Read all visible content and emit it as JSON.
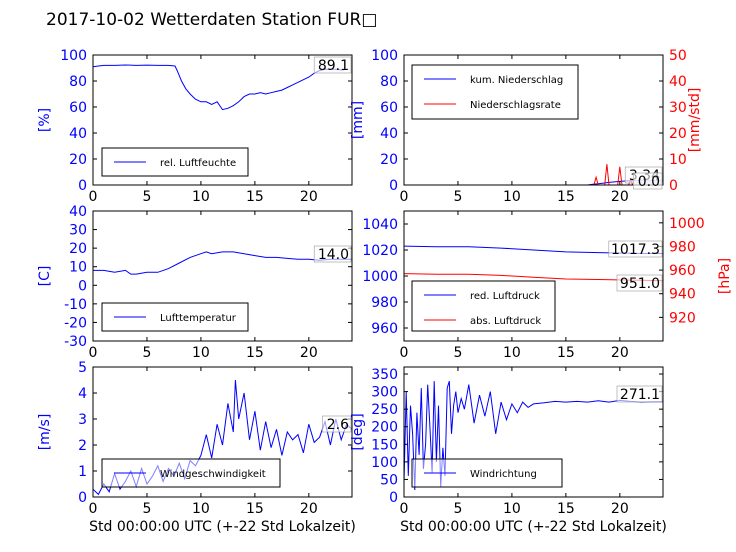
{
  "title": "2017-10-02 Wetterdaten Station FUR",
  "title_glyph": "□",
  "colors": {
    "primary": "#0000ff",
    "secondary": "#ff0000",
    "axis": "#000000"
  },
  "xlabel": "Std 00:00:00 UTC (+-22 Std Lokalzeit)",
  "chart_data": [
    {
      "id": "humidity",
      "type": "line",
      "ylabel": "[%]",
      "xlim": [
        0,
        24
      ],
      "ylim": [
        0,
        100
      ],
      "xticks": [
        0,
        5,
        10,
        15,
        20
      ],
      "yticks": [
        0,
        20,
        40,
        60,
        80,
        100
      ],
      "legend": [
        "rel. Luftfeuchte"
      ],
      "legend_position": "lower-left",
      "annotation": "89.1",
      "series": [
        {
          "name": "rel. Luftfeuchte",
          "color": "primary",
          "x": [
            0,
            0.5,
            1,
            2,
            3,
            4,
            5,
            6,
            7,
            7.6,
            7.8,
            8.2,
            8.6,
            9,
            9.5,
            10,
            10.5,
            11,
            11.5,
            12,
            12.5,
            13,
            13.5,
            14,
            14.5,
            15,
            15.5,
            16,
            16.5,
            17,
            17.5,
            18,
            18.5,
            19,
            19.5,
            20,
            20.5,
            21,
            21.5,
            22,
            22.5,
            23,
            23.6
          ],
          "y": [
            91,
            91.5,
            92,
            92,
            92.3,
            92,
            92.2,
            92,
            92,
            91.5,
            88,
            80,
            74,
            70,
            66,
            64,
            64,
            62,
            64,
            58,
            59,
            61,
            64,
            68,
            70,
            70,
            71,
            70,
            71,
            72,
            73,
            75,
            77,
            79,
            81,
            83,
            86,
            88,
            89,
            89,
            89,
            88.5,
            89.1
          ]
        }
      ]
    },
    {
      "id": "precipitation",
      "type": "line",
      "ylabel": "[mm]",
      "ylabel_right": "[mm/std]",
      "xlim": [
        0,
        24
      ],
      "ylim": [
        0,
        100
      ],
      "ylim_right": [
        0,
        50
      ],
      "xticks": [
        0,
        5,
        10,
        15,
        20
      ],
      "yticks": [
        0,
        20,
        40,
        60,
        80,
        100
      ],
      "yticks_right": [
        0,
        10,
        20,
        30,
        40,
        50
      ],
      "legend": [
        "kum. Niederschlag",
        "Niederschlagsrate"
      ],
      "legend_position": "upper-left",
      "annotations": [
        "3.34",
        "0.0"
      ],
      "series": [
        {
          "name": "kum. Niederschlag",
          "color": "primary",
          "axis": "left",
          "x": [
            0,
            17,
            17.5,
            18,
            18.5,
            19,
            19.5,
            20,
            20.5,
            21,
            22,
            24
          ],
          "y": [
            0,
            0,
            0.5,
            1,
            1.5,
            2,
            2.4,
            2.8,
            3.1,
            3.3,
            3.34,
            3.34
          ]
        },
        {
          "name": "Niederschlagsrate",
          "color": "secondary",
          "axis": "right",
          "x": [
            0,
            17.6,
            17.8,
            18,
            18.6,
            18.8,
            19,
            19.8,
            20,
            20.2,
            20.8,
            21,
            21.2,
            24
          ],
          "y": [
            0,
            0,
            3,
            0,
            0,
            8,
            0,
            0,
            7,
            0,
            0,
            2,
            0,
            0
          ]
        }
      ]
    },
    {
      "id": "temperature",
      "type": "line",
      "ylabel": "[C]",
      "xlim": [
        0,
        24
      ],
      "ylim": [
        -30,
        40
      ],
      "xticks": [
        0,
        5,
        10,
        15,
        20
      ],
      "yticks": [
        -30,
        -20,
        -10,
        0,
        10,
        20,
        30,
        40
      ],
      "legend": [
        "Lufttemperatur"
      ],
      "legend_position": "lower-left",
      "annotation": "14.0",
      "series": [
        {
          "name": "Lufttemperatur",
          "color": "primary",
          "x": [
            0,
            1,
            2,
            3,
            3.5,
            4,
            5,
            6,
            7,
            8,
            9,
            10,
            10.5,
            11,
            12,
            12.5,
            13,
            14,
            15,
            16,
            17,
            18,
            19,
            20,
            21,
            22,
            23,
            24
          ],
          "y": [
            8,
            8,
            7,
            8,
            6,
            6,
            7,
            7,
            9,
            12,
            15,
            17,
            18,
            17,
            18,
            18,
            18,
            17,
            16,
            15,
            15,
            14.5,
            14,
            14,
            13.5,
            14,
            14,
            14
          ]
        }
      ]
    },
    {
      "id": "pressure",
      "type": "line",
      "ylabel": "[hPa]",
      "xlim": [
        0,
        24
      ],
      "ylim": [
        950,
        1050
      ],
      "ylim_right": [
        900,
        1010
      ],
      "xticks": [
        0,
        5,
        10,
        15,
        20
      ],
      "yticks": [
        960,
        980,
        1000,
        1020,
        1040
      ],
      "yticks_right": [
        920,
        940,
        960,
        980,
        1000
      ],
      "legend": [
        "red. Luftdruck",
        "abs. Luftdruck"
      ],
      "legend_position": "lower-left",
      "annotations": [
        "1017.3",
        "951.0"
      ],
      "series": [
        {
          "name": "red. Luftdruck",
          "color": "primary",
          "axis": "left",
          "x": [
            0,
            3,
            6,
            9,
            12,
            15,
            18,
            21,
            24
          ],
          "y": [
            1023,
            1022.5,
            1022.5,
            1021.5,
            1020,
            1018.5,
            1018,
            1017.5,
            1017.3
          ]
        },
        {
          "name": "abs. Luftdruck",
          "color": "secondary",
          "axis": "right",
          "x": [
            0,
            3,
            6,
            9,
            12,
            15,
            18,
            21,
            24
          ],
          "y": [
            957,
            956.5,
            956.5,
            955.5,
            954,
            952.5,
            952,
            951.5,
            951
          ]
        }
      ]
    },
    {
      "id": "windspeed",
      "type": "line",
      "ylabel": "[m/s]",
      "xlim": [
        0,
        24
      ],
      "ylim": [
        0,
        5
      ],
      "xticks": [
        0,
        5,
        10,
        15,
        20
      ],
      "yticks": [
        0,
        1,
        2,
        3,
        4,
        5
      ],
      "legend": [
        "Windgeschwindigkeit"
      ],
      "legend_position": "lower-left",
      "annotation": "2.6",
      "series": [
        {
          "name": "Windgeschwindigkeit",
          "color": "primary",
          "x": [
            0,
            0.5,
            1,
            1.5,
            2,
            2.5,
            3,
            3.5,
            4,
            4.5,
            5,
            5.5,
            6,
            6.5,
            7,
            7.5,
            8,
            8.5,
            9,
            9.5,
            10,
            10.5,
            11,
            11.5,
            12,
            12.5,
            13,
            13.2,
            13.5,
            14,
            14.5,
            15,
            15.5,
            16,
            16.5,
            17,
            17.5,
            18,
            18.5,
            19,
            19.5,
            20,
            20.5,
            21,
            21.5,
            22,
            22.5,
            23,
            23.5,
            24
          ],
          "y": [
            0.3,
            0.1,
            0.5,
            0.2,
            0.9,
            0.3,
            0.6,
            1.0,
            0.4,
            1.1,
            0.5,
            0.8,
            1.2,
            0.6,
            1.1,
            0.8,
            1.3,
            0.7,
            1.4,
            1.2,
            1.6,
            2.4,
            1.5,
            2.8,
            2.0,
            3.6,
            2.5,
            4.5,
            3.0,
            4.0,
            2.2,
            3.3,
            1.8,
            2.9,
            1.9,
            2.6,
            1.6,
            2.5,
            2.2,
            2.4,
            1.7,
            2.8,
            2.1,
            2.3,
            2.9,
            2.0,
            3.0,
            2.2,
            2.8,
            2.6
          ]
        }
      ]
    },
    {
      "id": "winddirection",
      "type": "line",
      "ylabel": "[deg]",
      "xlim": [
        0,
        24
      ],
      "ylim": [
        0,
        370
      ],
      "xticks": [
        0,
        5,
        10,
        15,
        20
      ],
      "yticks": [
        0,
        50,
        100,
        150,
        200,
        250,
        300,
        350
      ],
      "legend": [
        "Windrichtung"
      ],
      "legend_position": "lower-left",
      "annotation": "271.1",
      "series": [
        {
          "name": "Windrichtung",
          "color": "primary",
          "x": [
            0,
            0.2,
            0.4,
            0.6,
            0.8,
            1.0,
            1.2,
            1.4,
            1.6,
            1.8,
            2.0,
            2.2,
            2.4,
            2.6,
            2.8,
            3.0,
            3.2,
            3.4,
            3.6,
            3.8,
            4.0,
            4.2,
            4.4,
            4.6,
            4.8,
            5.0,
            5.3,
            5.6,
            6.0,
            6.5,
            7.0,
            7.5,
            8.0,
            8.5,
            9.0,
            9.5,
            10,
            10.5,
            11,
            11.5,
            12,
            13,
            14,
            15,
            16,
            17,
            18,
            19,
            20,
            21,
            22,
            23,
            24
          ],
          "y": [
            40,
            300,
            60,
            260,
            180,
            20,
            240,
            120,
            310,
            80,
            150,
            320,
            200,
            70,
            330,
            100,
            260,
            30,
            140,
            60,
            310,
            330,
            180,
            260,
            300,
            240,
            280,
            250,
            320,
            210,
            290,
            230,
            300,
            180,
            270,
            220,
            265,
            240,
            270,
            255,
            265,
            268,
            272,
            270,
            272,
            270,
            274,
            270,
            275,
            272,
            270,
            271,
            271
          ]
        }
      ]
    }
  ]
}
